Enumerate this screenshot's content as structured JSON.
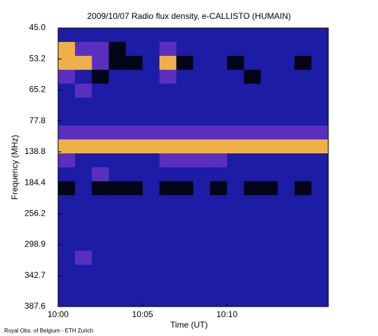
{
  "chart_data": {
    "type": "heatmap",
    "title": "2009/10/07  Radio flux density, e-CALLISTO (HUMAIN)",
    "xlabel": "Time (UT)",
    "ylabel": "Frequency (MHz)",
    "credit": "Royal Obs. of Belgium - ETH Zurich",
    "xlim": [
      600,
      616
    ],
    "xticks": [
      {
        "value": 600,
        "label": "10:00"
      },
      {
        "value": 605,
        "label": "10:05"
      },
      {
        "value": 610,
        "label": "10:10"
      }
    ],
    "yticks": [
      {
        "value": 45.0,
        "label": "45.0"
      },
      53.2,
      65.2,
      77.8,
      138.8,
      184.4,
      256.2,
      298.9,
      342.7,
      387.6
    ],
    "colors": [
      "#050518",
      "#1c1ca6",
      "#5a2fc0",
      "#f0b048"
    ],
    "z": [
      [
        1,
        1,
        1,
        1,
        1,
        1,
        1,
        1,
        1,
        1,
        1,
        1,
        1,
        1,
        1,
        1
      ],
      [
        3,
        2,
        2,
        0,
        1,
        1,
        2,
        1,
        1,
        1,
        1,
        1,
        1,
        1,
        1,
        1
      ],
      [
        3,
        3,
        2,
        0,
        0,
        1,
        3,
        0,
        1,
        1,
        0,
        1,
        1,
        1,
        0,
        1
      ],
      [
        2,
        1,
        0,
        1,
        1,
        1,
        2,
        1,
        1,
        1,
        1,
        0,
        1,
        1,
        1,
        1
      ],
      [
        1,
        2,
        1,
        1,
        1,
        1,
        1,
        1,
        1,
        1,
        1,
        1,
        1,
        1,
        1,
        1
      ],
      [
        1,
        1,
        1,
        1,
        1,
        1,
        1,
        1,
        1,
        1,
        1,
        1,
        1,
        1,
        1,
        1
      ],
      [
        1,
        1,
        1,
        1,
        1,
        1,
        1,
        1,
        1,
        1,
        1,
        1,
        1,
        1,
        1,
        1
      ],
      [
        2,
        2,
        2,
        2,
        2,
        2,
        2,
        2,
        2,
        2,
        2,
        2,
        2,
        2,
        2,
        2
      ],
      [
        3,
        3,
        3,
        3,
        3,
        3,
        3,
        3,
        3,
        3,
        3,
        3,
        3,
        3,
        3,
        3
      ],
      [
        2,
        1,
        1,
        1,
        1,
        1,
        2,
        2,
        2,
        2,
        1,
        1,
        1,
        1,
        1,
        1
      ],
      [
        1,
        1,
        2,
        1,
        1,
        1,
        1,
        1,
        1,
        1,
        1,
        1,
        1,
        1,
        1,
        1
      ],
      [
        0,
        1,
        0,
        0,
        0,
        1,
        0,
        0,
        1,
        0,
        1,
        0,
        0,
        1,
        0,
        1
      ],
      [
        1,
        1,
        1,
        1,
        1,
        1,
        1,
        1,
        1,
        1,
        1,
        1,
        1,
        1,
        1,
        1
      ],
      [
        1,
        1,
        1,
        1,
        1,
        1,
        1,
        1,
        1,
        1,
        1,
        1,
        1,
        1,
        1,
        1
      ],
      [
        1,
        1,
        1,
        1,
        1,
        1,
        1,
        1,
        1,
        1,
        1,
        1,
        1,
        1,
        1,
        1
      ],
      [
        1,
        1,
        1,
        1,
        1,
        1,
        1,
        1,
        1,
        1,
        1,
        1,
        1,
        1,
        1,
        1
      ],
      [
        1,
        2,
        1,
        1,
        1,
        1,
        1,
        1,
        1,
        1,
        1,
        1,
        1,
        1,
        1,
        1
      ],
      [
        1,
        1,
        1,
        1,
        1,
        1,
        1,
        1,
        1,
        1,
        1,
        1,
        1,
        1,
        1,
        1
      ],
      [
        1,
        1,
        1,
        1,
        1,
        1,
        1,
        1,
        1,
        1,
        1,
        1,
        1,
        1,
        1,
        1
      ],
      [
        1,
        1,
        1,
        1,
        1,
        1,
        1,
        1,
        1,
        1,
        1,
        1,
        1,
        1,
        1,
        1
      ]
    ]
  }
}
